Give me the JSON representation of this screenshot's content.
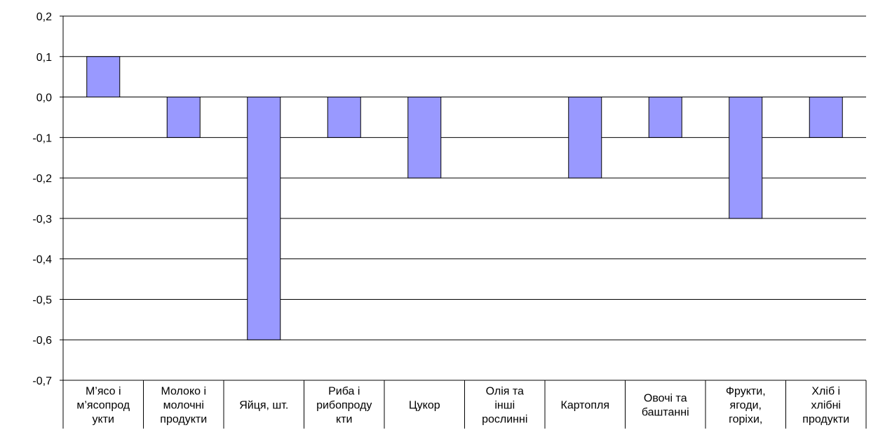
{
  "chart_data": {
    "type": "bar",
    "title": "",
    "xlabel": "",
    "ylabel": "",
    "ylim": [
      -0.7,
      0.2
    ],
    "y_ticks": [
      "0,2",
      "0,1",
      "0,0",
      "-0,1",
      "-0,2",
      "-0,3",
      "-0,4",
      "-0,5",
      "-0,6",
      "-0,7"
    ],
    "y_tick_values": [
      0.2,
      0.1,
      0.0,
      -0.1,
      -0.2,
      -0.3,
      -0.4,
      -0.5,
      -0.6,
      -0.7
    ],
    "grid": true,
    "legend": "none",
    "categories": [
      [
        "М’ясо і",
        "м’ясопрод",
        "укти"
      ],
      [
        "Молоко і",
        "молочні",
        "продукти"
      ],
      [
        "Яйця, шт."
      ],
      [
        "Риба і",
        "рибопроду",
        "кти"
      ],
      [
        "Цукор"
      ],
      [
        "Олія та",
        "інші",
        "рослинні"
      ],
      [
        "Картопля"
      ],
      [
        "Овочі та",
        "баштанні"
      ],
      [
        "Фрукти,",
        "ягоди,",
        "горіхи,"
      ],
      [
        "Хліб і",
        "хлібні",
        "продукти"
      ]
    ],
    "values": [
      0.1,
      -0.1,
      -0.6,
      -0.1,
      -0.2,
      0.0,
      -0.2,
      -0.1,
      -0.3,
      -0.1
    ],
    "colors": {
      "bar": "#9999ff",
      "bar_stroke": "#000000",
      "grid": "#000000"
    }
  }
}
